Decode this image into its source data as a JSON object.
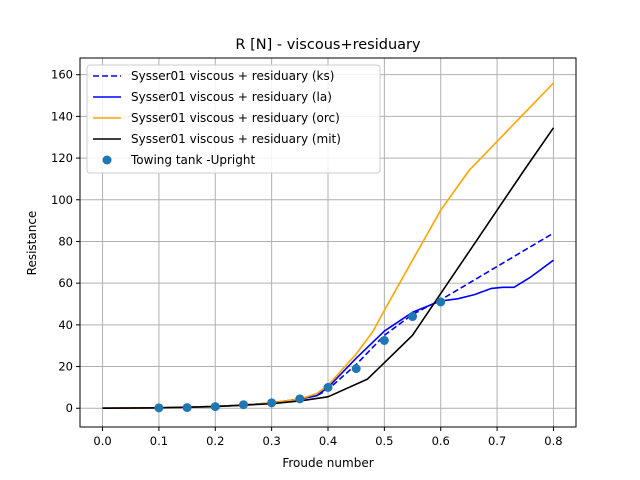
{
  "chart_data": {
    "type": "line",
    "title": "R [N] - viscous+residuary",
    "xlabel": "Froude number",
    "ylabel": "Resistance",
    "xlim": [
      -0.04,
      0.84
    ],
    "ylim": [
      -9,
      168
    ],
    "xticks": [
      0.0,
      0.1,
      0.2,
      0.3,
      0.4,
      0.5,
      0.6,
      0.7,
      0.8
    ],
    "xtick_labels": [
      "0.0",
      "0.1",
      "0.2",
      "0.3",
      "0.4",
      "0.5",
      "0.6",
      "0.7",
      "0.8"
    ],
    "yticks": [
      0,
      20,
      40,
      60,
      80,
      100,
      120,
      140,
      160
    ],
    "ytick_labels": [
      "0",
      "20",
      "40",
      "60",
      "80",
      "100",
      "120",
      "140",
      "160"
    ],
    "grid": true,
    "legend_placement": "top-left",
    "series": [
      {
        "name": "Sysser01 viscous + residuary (ks)",
        "color": "#0000ff",
        "style": "dashed",
        "x": [
          0.0,
          0.1,
          0.15,
          0.2,
          0.25,
          0.3,
          0.35,
          0.38,
          0.4,
          0.45,
          0.5,
          0.55,
          0.6,
          0.65,
          0.7,
          0.75,
          0.8
        ],
        "y": [
          0,
          0.2,
          0.5,
          0.9,
          1.5,
          2.6,
          4.4,
          6,
          9,
          21,
          35,
          45,
          52,
          60,
          68,
          76,
          84
        ]
      },
      {
        "name": "Sysser01 viscous + residuary (la)",
        "color": "#0000ff",
        "style": "solid",
        "x": [
          0.0,
          0.1,
          0.15,
          0.2,
          0.25,
          0.3,
          0.35,
          0.38,
          0.4,
          0.45,
          0.5,
          0.55,
          0.6,
          0.63,
          0.66,
          0.69,
          0.71,
          0.73,
          0.76,
          0.8
        ],
        "y": [
          0,
          0.2,
          0.5,
          0.9,
          1.5,
          2.6,
          4.4,
          6,
          10,
          24,
          37,
          46,
          51.5,
          52.5,
          54.5,
          57.5,
          58,
          58,
          63,
          71
        ]
      },
      {
        "name": "Sysser01 viscous + residuary (orc)",
        "color": "#ffa500",
        "style": "solid",
        "x": [
          0.0,
          0.1,
          0.15,
          0.2,
          0.25,
          0.3,
          0.35,
          0.38,
          0.4,
          0.45,
          0.48,
          0.5,
          0.55,
          0.6,
          0.65,
          0.7,
          0.75,
          0.8
        ],
        "y": [
          0,
          0.2,
          0.5,
          0.9,
          1.5,
          2.6,
          4.4,
          7,
          11,
          26,
          37,
          47,
          71,
          95,
          114,
          128,
          142,
          156
        ]
      },
      {
        "name": "Sysser01 viscous + residuary (mit)",
        "color": "#000000",
        "style": "solid",
        "x": [
          0.0,
          0.1,
          0.2,
          0.3,
          0.35,
          0.4,
          0.47,
          0.55,
          0.6,
          0.65,
          0.7,
          0.75,
          0.8
        ],
        "y": [
          0,
          0.2,
          0.8,
          2.2,
          3.5,
          5.5,
          14,
          35,
          55,
          75,
          95,
          115,
          134.5
        ]
      }
    ],
    "scatter": {
      "name": "Towing tank -Upright",
      "color": "#1f77b4",
      "x": [
        0.1,
        0.15,
        0.2,
        0.25,
        0.3,
        0.35,
        0.4,
        0.45,
        0.5,
        0.55,
        0.6
      ],
      "y": [
        0.2,
        0.3,
        0.8,
        1.7,
        2.6,
        4.5,
        10,
        19,
        32.5,
        44,
        51
      ]
    }
  }
}
